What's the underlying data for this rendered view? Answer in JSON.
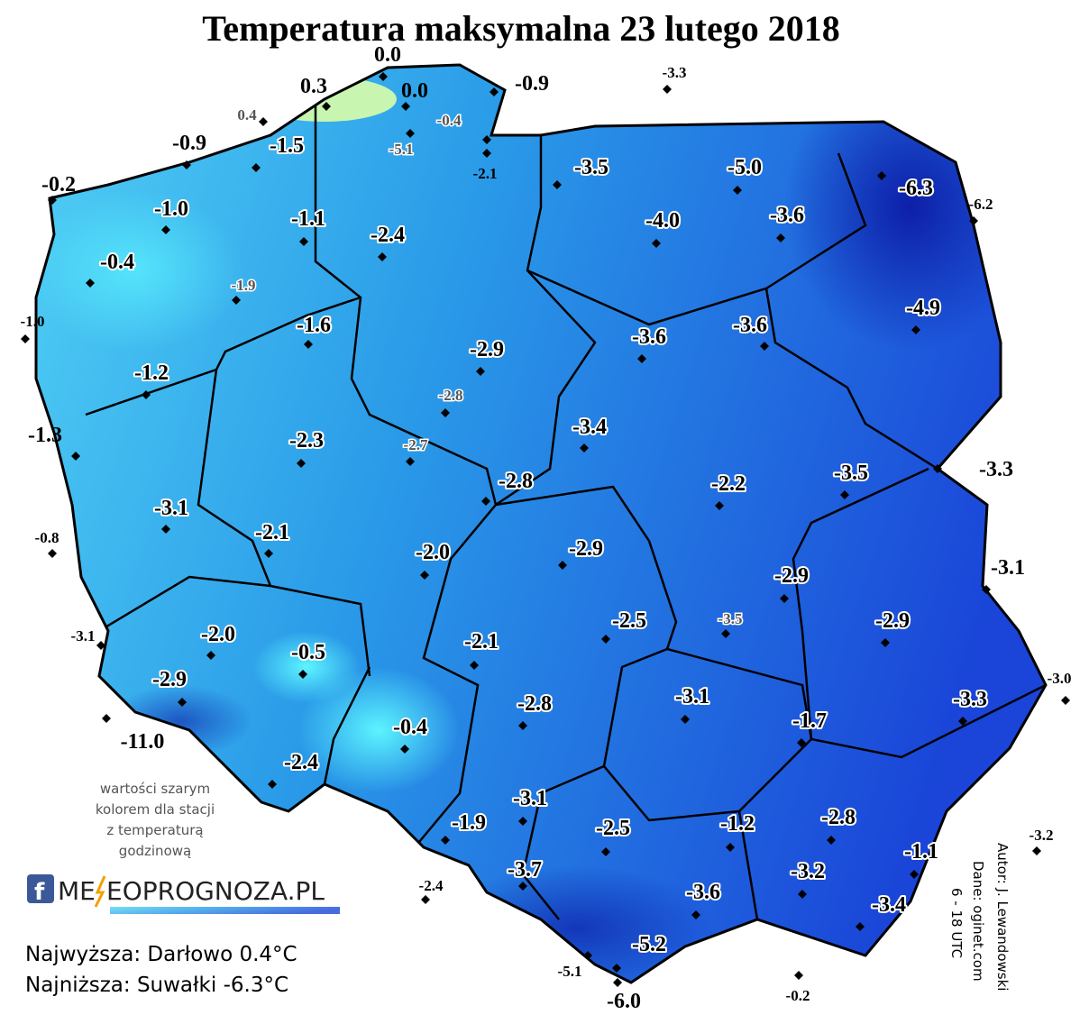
{
  "title": "Temperatura maksymalna 23 lutego 2018",
  "stations": [
    "0.0",
    "0.3",
    "0.0",
    "-0.9",
    "-3.3",
    "0.4",
    "-0.4",
    "-5.1",
    "-0.9",
    "-1.5",
    "-2.1",
    "-3.5",
    "-5.0",
    "-6.3",
    "-6.2",
    "-0.2",
    "-1.0",
    "-1.1",
    "-2.4",
    "-4.0",
    "-3.6",
    "-0.4",
    "-1.9",
    "-1.0",
    "-1.6",
    "-4.9",
    "-3.6",
    "-3.6",
    "-2.9",
    "-1.2",
    "-2.8",
    "-1.3",
    "-3.4",
    "-2.3",
    "-2.7",
    "-3.3",
    "-2.8",
    "-2.2",
    "-3.5",
    "-3.1",
    "-0.8",
    "-2.1",
    "-2.0",
    "-2.9",
    "-3.1",
    "-2.9",
    "-3.5",
    "-2.5",
    "-2.9",
    "-3.1",
    "-2.0",
    "-0.5",
    "-2.1",
    "-3.0",
    "-2.9",
    "-3.1",
    "-3.3",
    "-2.8",
    "-1.7",
    "-11.0",
    "-0.4",
    "-2.4",
    "-3.1",
    "-1.9",
    "-2.5",
    "-1.2",
    "-2.8",
    "-3.2",
    "-1.1",
    "-3.7",
    "-3.2",
    "-2.4",
    "-3.6",
    "-3.4",
    "-5.2",
    "-5.1",
    "-6.0",
    "-0.2"
  ],
  "note": [
    "wartości szarym",
    "kolorem dla stacji",
    "z temperaturą",
    "godzinową"
  ],
  "logo": {
    "left": "ME",
    "right": "EOPROGNOZA.PL"
  },
  "extremes": [
    "Najwyższa: Darłowo 0.4°C",
    "Najniższa: Suwałki -6.3°C"
  ],
  "credits": [
    "Autor: J. Lewandowski",
    "Dane: oginet.com",
    "6 - 18 UTC"
  ]
}
